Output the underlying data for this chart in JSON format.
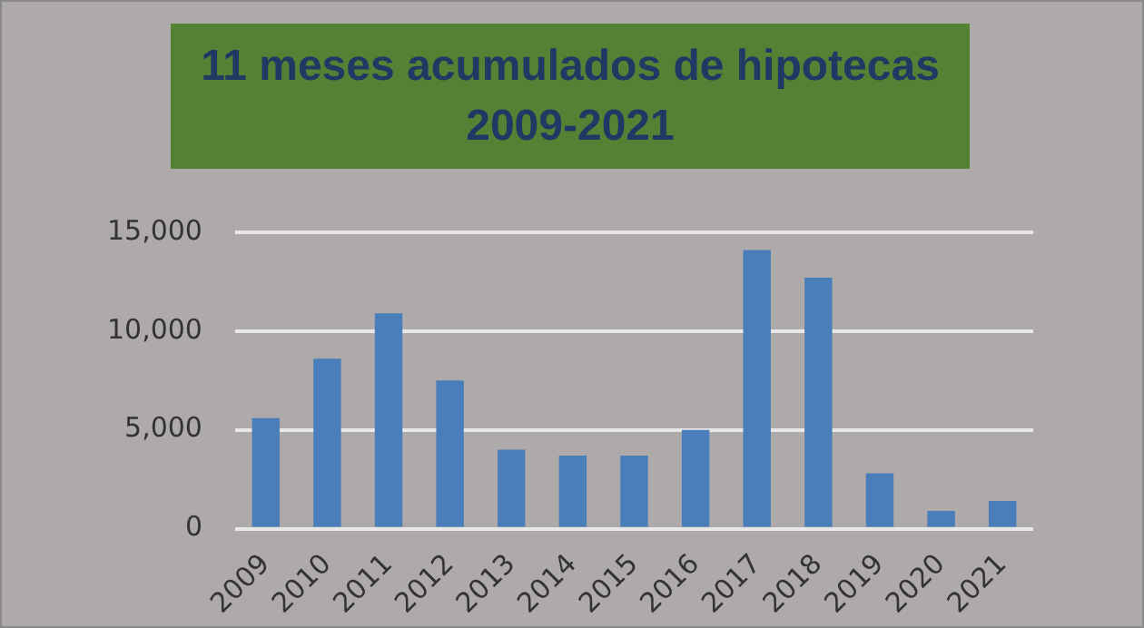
{
  "chart_data": {
    "type": "bar",
    "title": "11 meses acumulados de hipotecas\n2009-2021",
    "categories": [
      "2009",
      "2010",
      "2011",
      "2012",
      "2013",
      "2014",
      "2015",
      "2016",
      "2017",
      "2018",
      "2019",
      "2020",
      "2021"
    ],
    "values": [
      5600,
      8600,
      10900,
      7500,
      4000,
      3700,
      3700,
      5000,
      14100,
      12700,
      2800,
      900,
      1400
    ],
    "color": "#4a7ebb",
    "ylim": [
      0,
      15000
    ],
    "yticks": [
      {
        "value": 0,
        "label": "0"
      },
      {
        "value": 5000,
        "label": "5,000"
      },
      {
        "value": 10000,
        "label": "10,000"
      },
      {
        "value": 15000,
        "label": "15,000"
      }
    ],
    "grid": "y"
  }
}
